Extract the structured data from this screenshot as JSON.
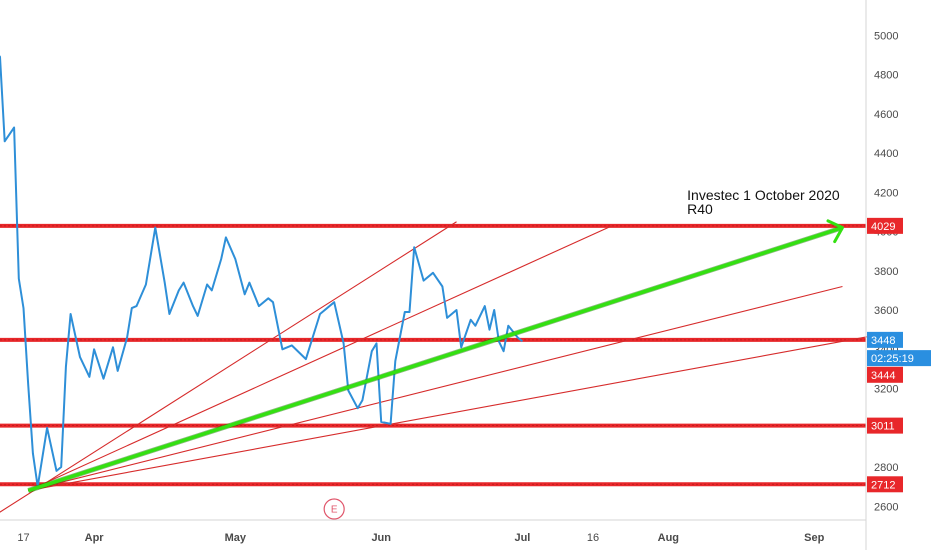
{
  "chart_data": {
    "type": "line",
    "title": "",
    "xlabel": "",
    "ylabel": "",
    "ylim": [
      2530,
      5180
    ],
    "y_ticks": [
      2600,
      2800,
      3000,
      3200,
      3400,
      3600,
      3800,
      4000,
      4200,
      4400,
      4600,
      4800,
      5000
    ],
    "x_range": [
      "2020-03-12",
      "2020-09-12"
    ],
    "x_ticks": [
      {
        "date": "2020-03-17",
        "label": "17",
        "bold": false
      },
      {
        "date": "2020-04-01",
        "label": "Apr",
        "bold": true
      },
      {
        "date": "2020-05-01",
        "label": "May",
        "bold": true
      },
      {
        "date": "2020-06-01",
        "label": "Jun",
        "bold": true
      },
      {
        "date": "2020-07-01",
        "label": "Jul",
        "bold": true
      },
      {
        "date": "2020-07-16",
        "label": "16",
        "bold": false
      },
      {
        "date": "2020-08-01",
        "label": "Aug",
        "bold": true
      },
      {
        "date": "2020-09-01",
        "label": "Sep",
        "bold": true
      }
    ],
    "grid": false,
    "series": [
      {
        "color": "#2e8fd8",
        "points": [
          {
            "x": "2020-03-11",
            "y": 4920
          },
          {
            "x": "2020-03-12",
            "y": 4890
          },
          {
            "x": "2020-03-13",
            "y": 4460
          },
          {
            "x": "2020-03-15",
            "y": 4530
          },
          {
            "x": "2020-03-16",
            "y": 3760
          },
          {
            "x": "2020-03-17",
            "y": 3610
          },
          {
            "x": "2020-03-18",
            "y": 3220
          },
          {
            "x": "2020-03-19",
            "y": 2870
          },
          {
            "x": "2020-03-20",
            "y": 2700
          },
          {
            "x": "2020-03-22",
            "y": 3000
          },
          {
            "x": "2020-03-24",
            "y": 2780
          },
          {
            "x": "2020-03-25",
            "y": 2800
          },
          {
            "x": "2020-03-26",
            "y": 3310
          },
          {
            "x": "2020-03-27",
            "y": 3580
          },
          {
            "x": "2020-03-29",
            "y": 3360
          },
          {
            "x": "2020-03-31",
            "y": 3260
          },
          {
            "x": "2020-04-01",
            "y": 3400
          },
          {
            "x": "2020-04-03",
            "y": 3250
          },
          {
            "x": "2020-04-05",
            "y": 3410
          },
          {
            "x": "2020-04-06",
            "y": 3290
          },
          {
            "x": "2020-04-08",
            "y": 3460
          },
          {
            "x": "2020-04-09",
            "y": 3610
          },
          {
            "x": "2020-04-10",
            "y": 3620
          },
          {
            "x": "2020-04-12",
            "y": 3730
          },
          {
            "x": "2020-04-14",
            "y": 4020
          },
          {
            "x": "2020-04-16",
            "y": 3740
          },
          {
            "x": "2020-04-17",
            "y": 3580
          },
          {
            "x": "2020-04-19",
            "y": 3700
          },
          {
            "x": "2020-04-20",
            "y": 3740
          },
          {
            "x": "2020-04-22",
            "y": 3620
          },
          {
            "x": "2020-04-23",
            "y": 3570
          },
          {
            "x": "2020-04-25",
            "y": 3730
          },
          {
            "x": "2020-04-26",
            "y": 3700
          },
          {
            "x": "2020-04-28",
            "y": 3860
          },
          {
            "x": "2020-04-29",
            "y": 3970
          },
          {
            "x": "2020-05-01",
            "y": 3860
          },
          {
            "x": "2020-05-03",
            "y": 3680
          },
          {
            "x": "2020-05-04",
            "y": 3740
          },
          {
            "x": "2020-05-06",
            "y": 3620
          },
          {
            "x": "2020-05-08",
            "y": 3660
          },
          {
            "x": "2020-05-09",
            "y": 3640
          },
          {
            "x": "2020-05-11",
            "y": 3400
          },
          {
            "x": "2020-05-13",
            "y": 3420
          },
          {
            "x": "2020-05-16",
            "y": 3350
          },
          {
            "x": "2020-05-19",
            "y": 3580
          },
          {
            "x": "2020-05-22",
            "y": 3640
          },
          {
            "x": "2020-05-24",
            "y": 3430
          },
          {
            "x": "2020-05-25",
            "y": 3190
          },
          {
            "x": "2020-05-27",
            "y": 3100
          },
          {
            "x": "2020-05-28",
            "y": 3140
          },
          {
            "x": "2020-05-30",
            "y": 3390
          },
          {
            "x": "2020-05-31",
            "y": 3430
          },
          {
            "x": "2020-06-01",
            "y": 3030
          },
          {
            "x": "2020-06-03",
            "y": 3020
          },
          {
            "x": "2020-06-04",
            "y": 3340
          },
          {
            "x": "2020-06-06",
            "y": 3590
          },
          {
            "x": "2020-06-07",
            "y": 3590
          },
          {
            "x": "2020-06-08",
            "y": 3920
          },
          {
            "x": "2020-06-10",
            "y": 3750
          },
          {
            "x": "2020-06-12",
            "y": 3790
          },
          {
            "x": "2020-06-14",
            "y": 3720
          },
          {
            "x": "2020-06-15",
            "y": 3560
          },
          {
            "x": "2020-06-17",
            "y": 3600
          },
          {
            "x": "2020-06-18",
            "y": 3410
          },
          {
            "x": "2020-06-20",
            "y": 3550
          },
          {
            "x": "2020-06-21",
            "y": 3520
          },
          {
            "x": "2020-06-23",
            "y": 3620
          },
          {
            "x": "2020-06-24",
            "y": 3500
          },
          {
            "x": "2020-06-25",
            "y": 3600
          },
          {
            "x": "2020-06-26",
            "y": 3440
          },
          {
            "x": "2020-06-27",
            "y": 3390
          },
          {
            "x": "2020-06-28",
            "y": 3520
          },
          {
            "x": "2020-06-30",
            "y": 3460
          },
          {
            "x": "2020-07-01",
            "y": 3440
          }
        ]
      }
    ],
    "horizontal_levels": [
      {
        "value": 4029,
        "label": "4029",
        "color": "#e8272a",
        "badge": true
      },
      {
        "value": 3448,
        "label": "3448",
        "color": "#e8272a",
        "badge": false
      },
      {
        "value": 3011,
        "label": "3011",
        "color": "#e8272a",
        "badge": true
      },
      {
        "value": 2712,
        "label": "2712",
        "color": "#e8272a",
        "badge": true
      }
    ],
    "price_badges": [
      {
        "value": 3448,
        "label": "3448",
        "color": "#2a8fe0"
      },
      {
        "value": 3355,
        "label": "02:25:19",
        "color": "#2a8fe0"
      },
      {
        "value": 3270,
        "label": "3444",
        "color": "#e8272a"
      }
    ],
    "trendlines": [
      {
        "color": "#d62b2b",
        "from": {
          "x": "2020-03-10",
          "y": 2540
        },
        "to": {
          "x": "2020-06-17",
          "y": 4050
        }
      },
      {
        "color": "#d62b2b",
        "from": {
          "x": "2020-03-18",
          "y": 2680
        },
        "to": {
          "x": "2020-07-20",
          "y": 4029
        }
      },
      {
        "color": "#d62b2b",
        "from": {
          "x": "2020-03-18",
          "y": 2680
        },
        "to": {
          "x": "2020-09-07",
          "y": 3720
        }
      },
      {
        "color": "#d62b2b",
        "from": {
          "x": "2020-03-18",
          "y": 2680
        },
        "to": {
          "x": "2020-09-16",
          "y": 3480
        }
      }
    ],
    "projection_arrow": {
      "color": "#33e011",
      "from": {
        "x": "2020-03-18",
        "y": 2680
      },
      "to": {
        "x": "2020-09-07",
        "y": 4020
      }
    },
    "annotation": {
      "lines": [
        "Investec 1 October 2020",
        "R40"
      ],
      "at": {
        "x": "2020-08-05",
        "y": 4160
      }
    },
    "event_marker": {
      "label": "E",
      "x": "2020-05-22"
    }
  }
}
